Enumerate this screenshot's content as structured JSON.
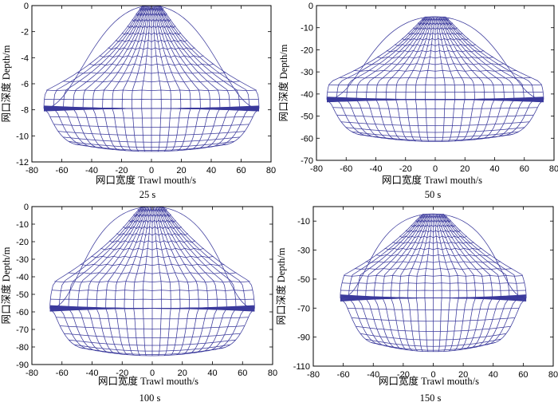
{
  "chart_data": [
    {
      "type": "line",
      "title": "25 s",
      "xlabel": "网口宽度 Trawl mouth/s",
      "ylabel": "网口深度 Depth/m",
      "xlim": [
        -80,
        80
      ],
      "ylim": [
        -12,
        0
      ],
      "xticks": [
        -80,
        -60,
        -40,
        -20,
        0,
        20,
        40,
        60,
        80
      ],
      "yticks": [
        -12,
        -10,
        -8,
        -6,
        -4,
        -2,
        0
      ],
      "net": {
        "half_width_top": 48,
        "top_depth": 0,
        "belly_depth": -7.9,
        "belly_half_width": 72,
        "bottom_depth": -11.2,
        "bottom_half_width": 62
      },
      "series": [
        {
          "name": "netting mesh",
          "color": "#3b3a9c"
        }
      ]
    },
    {
      "type": "line",
      "title": "50 s",
      "xlabel": "网口宽度 Trawl mouth/s",
      "ylabel": "网口深度 Depth/m",
      "xlim": [
        -80,
        80
      ],
      "ylim": [
        -70,
        0
      ],
      "xticks": [
        -80,
        -60,
        -40,
        -20,
        0,
        20,
        40,
        60,
        80
      ],
      "yticks": [
        -70,
        -60,
        -50,
        -40,
        -30,
        -20,
        -10,
        0
      ],
      "net": {
        "half_width_top": 55,
        "top_depth": -5,
        "belly_depth": -42.5,
        "belly_half_width": 73,
        "bottom_depth": -61.5,
        "bottom_half_width": 63
      },
      "series": [
        {
          "name": "netting mesh",
          "color": "#3b3a9c"
        }
      ]
    },
    {
      "type": "line",
      "title": "100 s",
      "xlabel": "网口宽度 Trawl mouth/s",
      "ylabel": "网口深度 Depth/m",
      "xlim": [
        -80,
        80
      ],
      "ylim": [
        -90,
        0
      ],
      "xticks": [
        -80,
        -60,
        -40,
        -20,
        0,
        20,
        40,
        60,
        80
      ],
      "yticks": [
        -90,
        -80,
        -70,
        -60,
        -50,
        -40,
        -30,
        -20,
        -10,
        0
      ],
      "net": {
        "half_width_top": 58,
        "top_depth": 0,
        "belly_depth": -58,
        "belly_half_width": 68,
        "bottom_depth": -85,
        "bottom_half_width": 58
      },
      "series": [
        {
          "name": "netting mesh",
          "color": "#3b3a9c"
        }
      ]
    },
    {
      "type": "line",
      "title": "150 s",
      "xlabel": "网口宽度 Trawl mouth/s",
      "ylabel": "网口深度 Depth/m",
      "xlim": [
        -80,
        80
      ],
      "ylim": [
        -110,
        0
      ],
      "xticks": [
        -80,
        -60,
        -40,
        -20,
        0,
        20,
        40,
        60,
        80
      ],
      "yticks": [
        -110,
        -90,
        -70,
        -50,
        -30,
        -10
      ],
      "net": {
        "half_width_top": 55,
        "top_depth": -5,
        "belly_depth": -63,
        "belly_half_width": 62,
        "bottom_depth": -100,
        "bottom_half_width": 50
      },
      "series": [
        {
          "name": "netting mesh",
          "color": "#3b3a9c"
        }
      ]
    }
  ]
}
